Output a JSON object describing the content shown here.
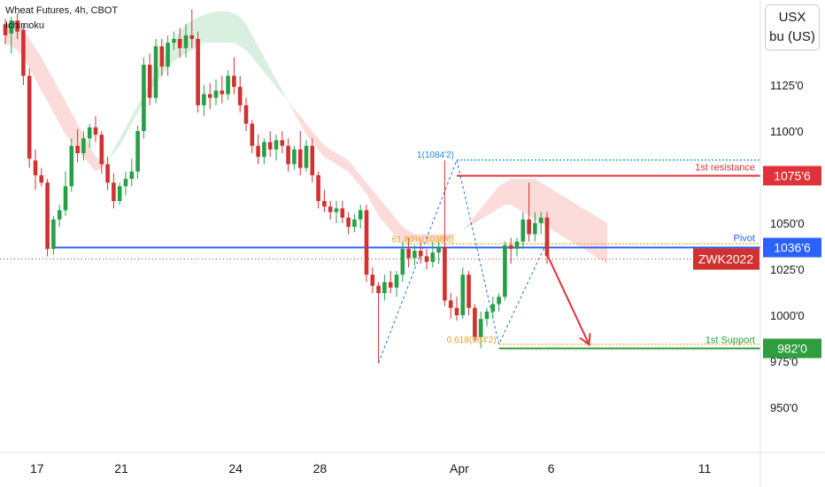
{
  "header": {
    "symbol_line": "Wheat Futures, 4h, CBOT",
    "indicator": "Ichimoku"
  },
  "units": {
    "line1": "USX",
    "line2": "bu (US)"
  },
  "colors": {
    "up": "#26a047",
    "down": "#d1312f",
    "cloud_bull": "#d9efdf",
    "cloud_bear": "#fbdcdb",
    "pivot": "#2962ff",
    "resistance": "#e0323a",
    "support": "#2e9e3e",
    "fib": "#e8a317",
    "fib_top": "#1e88e5"
  },
  "chart_data": {
    "type": "candlestick",
    "symbol": "ZWK2022",
    "timeframe": "4h",
    "x_axis_labels": [
      "17",
      "21",
      "24",
      "28",
      "Apr",
      "6",
      "11"
    ],
    "y_axis_labels": [
      "1125'0",
      "1100'0",
      "1075'0",
      "1050'0",
      "1025'0",
      "1000'0",
      "975'0",
      "950'0"
    ],
    "y_axis_values": [
      1125,
      1100,
      1075,
      1050,
      1025,
      1000,
      975,
      950
    ],
    "ylim": [
      925,
      1168
    ],
    "candles": [
      {
        "o": 1158,
        "h": 1161,
        "l": 1147,
        "c": 1152
      },
      {
        "o": 1153,
        "h": 1162,
        "l": 1142,
        "c": 1160
      },
      {
        "o": 1160,
        "h": 1164,
        "l": 1150,
        "c": 1154
      },
      {
        "o": 1155,
        "h": 1158,
        "l": 1125,
        "c": 1130
      },
      {
        "o": 1130,
        "h": 1134,
        "l": 1080,
        "c": 1085
      },
      {
        "o": 1084,
        "h": 1090,
        "l": 1068,
        "c": 1076
      },
      {
        "o": 1076,
        "h": 1080,
        "l": 1070,
        "c": 1072
      },
      {
        "o": 1072,
        "h": 1074,
        "l": 1032,
        "c": 1036
      },
      {
        "o": 1036,
        "h": 1054,
        "l": 1033,
        "c": 1052
      },
      {
        "o": 1052,
        "h": 1060,
        "l": 1048,
        "c": 1057
      },
      {
        "o": 1057,
        "h": 1078,
        "l": 1054,
        "c": 1070
      },
      {
        "o": 1070,
        "h": 1096,
        "l": 1067,
        "c": 1092
      },
      {
        "o": 1092,
        "h": 1101,
        "l": 1083,
        "c": 1088
      },
      {
        "o": 1088,
        "h": 1100,
        "l": 1084,
        "c": 1096
      },
      {
        "o": 1096,
        "h": 1104,
        "l": 1091,
        "c": 1102
      },
      {
        "o": 1102,
        "h": 1108,
        "l": 1094,
        "c": 1098
      },
      {
        "o": 1098,
        "h": 1100,
        "l": 1077,
        "c": 1082
      },
      {
        "o": 1082,
        "h": 1086,
        "l": 1068,
        "c": 1072
      },
      {
        "o": 1072,
        "h": 1077,
        "l": 1058,
        "c": 1062
      },
      {
        "o": 1062,
        "h": 1072,
        "l": 1060,
        "c": 1070
      },
      {
        "o": 1070,
        "h": 1078,
        "l": 1065,
        "c": 1074
      },
      {
        "o": 1074,
        "h": 1085,
        "l": 1070,
        "c": 1078
      },
      {
        "o": 1078,
        "h": 1103,
        "l": 1074,
        "c": 1100
      },
      {
        "o": 1100,
        "h": 1140,
        "l": 1096,
        "c": 1136
      },
      {
        "o": 1136,
        "h": 1142,
        "l": 1114,
        "c": 1118
      },
      {
        "o": 1118,
        "h": 1150,
        "l": 1115,
        "c": 1146
      },
      {
        "o": 1146,
        "h": 1150,
        "l": 1130,
        "c": 1135
      },
      {
        "o": 1135,
        "h": 1152,
        "l": 1130,
        "c": 1148
      },
      {
        "o": 1148,
        "h": 1154,
        "l": 1144,
        "c": 1150
      },
      {
        "o": 1150,
        "h": 1156,
        "l": 1140,
        "c": 1145
      },
      {
        "o": 1145,
        "h": 1158,
        "l": 1140,
        "c": 1152
      },
      {
        "o": 1152,
        "h": 1166,
        "l": 1145,
        "c": 1150
      },
      {
        "o": 1150,
        "h": 1154,
        "l": 1110,
        "c": 1114
      },
      {
        "o": 1114,
        "h": 1125,
        "l": 1108,
        "c": 1120
      },
      {
        "o": 1120,
        "h": 1126,
        "l": 1112,
        "c": 1118
      },
      {
        "o": 1118,
        "h": 1128,
        "l": 1114,
        "c": 1122
      },
      {
        "o": 1122,
        "h": 1130,
        "l": 1115,
        "c": 1120
      },
      {
        "o": 1120,
        "h": 1133,
        "l": 1117,
        "c": 1130
      },
      {
        "o": 1130,
        "h": 1140,
        "l": 1120,
        "c": 1124
      },
      {
        "o": 1124,
        "h": 1130,
        "l": 1110,
        "c": 1114
      },
      {
        "o": 1114,
        "h": 1118,
        "l": 1100,
        "c": 1104
      },
      {
        "o": 1104,
        "h": 1106,
        "l": 1088,
        "c": 1092
      },
      {
        "o": 1092,
        "h": 1098,
        "l": 1082,
        "c": 1086
      },
      {
        "o": 1086,
        "h": 1096,
        "l": 1082,
        "c": 1094
      },
      {
        "o": 1094,
        "h": 1100,
        "l": 1086,
        "c": 1090
      },
      {
        "o": 1090,
        "h": 1098,
        "l": 1084,
        "c": 1095
      },
      {
        "o": 1095,
        "h": 1100,
        "l": 1088,
        "c": 1092
      },
      {
        "o": 1092,
        "h": 1096,
        "l": 1078,
        "c": 1082
      },
      {
        "o": 1082,
        "h": 1092,
        "l": 1079,
        "c": 1090
      },
      {
        "o": 1090,
        "h": 1100,
        "l": 1076,
        "c": 1080
      },
      {
        "o": 1080,
        "h": 1095,
        "l": 1078,
        "c": 1092
      },
      {
        "o": 1092,
        "h": 1096,
        "l": 1072,
        "c": 1076
      },
      {
        "o": 1076,
        "h": 1078,
        "l": 1058,
        "c": 1062
      },
      {
        "o": 1062,
        "h": 1068,
        "l": 1056,
        "c": 1059
      },
      {
        "o": 1059,
        "h": 1062,
        "l": 1052,
        "c": 1056
      },
      {
        "o": 1056,
        "h": 1062,
        "l": 1050,
        "c": 1058
      },
      {
        "o": 1058,
        "h": 1062,
        "l": 1050,
        "c": 1053
      },
      {
        "o": 1053,
        "h": 1056,
        "l": 1044,
        "c": 1048
      },
      {
        "o": 1048,
        "h": 1055,
        "l": 1045,
        "c": 1052
      },
      {
        "o": 1052,
        "h": 1060,
        "l": 1047,
        "c": 1057
      },
      {
        "o": 1057,
        "h": 1060,
        "l": 1018,
        "c": 1022
      },
      {
        "o": 1022,
        "h": 1026,
        "l": 1012,
        "c": 1016
      },
      {
        "o": 1016,
        "h": 1018,
        "l": 974,
        "c": 1012
      },
      {
        "o": 1012,
        "h": 1022,
        "l": 1008,
        "c": 1018
      },
      {
        "o": 1018,
        "h": 1024,
        "l": 1012,
        "c": 1015
      },
      {
        "o": 1015,
        "h": 1024,
        "l": 1010,
        "c": 1022
      },
      {
        "o": 1022,
        "h": 1040,
        "l": 1018,
        "c": 1036
      },
      {
        "o": 1036,
        "h": 1042,
        "l": 1026,
        "c": 1031
      },
      {
        "o": 1031,
        "h": 1038,
        "l": 1027,
        "c": 1035
      },
      {
        "o": 1035,
        "h": 1040,
        "l": 1028,
        "c": 1032
      },
      {
        "o": 1032,
        "h": 1036,
        "l": 1025,
        "c": 1029
      },
      {
        "o": 1029,
        "h": 1040,
        "l": 1026,
        "c": 1034
      },
      {
        "o": 1034,
        "h": 1040,
        "l": 1028,
        "c": 1037
      },
      {
        "o": 1037,
        "h": 1084,
        "l": 1005,
        "c": 1008
      },
      {
        "o": 1008,
        "h": 1012,
        "l": 998,
        "c": 1004
      },
      {
        "o": 1004,
        "h": 1010,
        "l": 997,
        "c": 1000
      },
      {
        "o": 1000,
        "h": 1026,
        "l": 998,
        "c": 1022
      },
      {
        "o": 1022,
        "h": 1024,
        "l": 1000,
        "c": 1004
      },
      {
        "o": 1004,
        "h": 1006,
        "l": 986,
        "c": 988
      },
      {
        "o": 988,
        "h": 1002,
        "l": 982,
        "c": 998
      },
      {
        "o": 998,
        "h": 1004,
        "l": 994,
        "c": 1002
      },
      {
        "o": 1002,
        "h": 1010,
        "l": 998,
        "c": 1006
      },
      {
        "o": 1006,
        "h": 1012,
        "l": 1002,
        "c": 1010
      },
      {
        "o": 1010,
        "h": 1040,
        "l": 1008,
        "c": 1038
      },
      {
        "o": 1038,
        "h": 1042,
        "l": 1028,
        "c": 1036
      },
      {
        "o": 1036,
        "h": 1042,
        "l": 1032,
        "c": 1040
      },
      {
        "o": 1040,
        "h": 1056,
        "l": 1036,
        "c": 1052
      },
      {
        "o": 1052,
        "h": 1072,
        "l": 1040,
        "c": 1044
      },
      {
        "o": 1044,
        "h": 1056,
        "l": 1040,
        "c": 1050
      },
      {
        "o": 1050,
        "h": 1056,
        "l": 1044,
        "c": 1053
      },
      {
        "o": 1053,
        "h": 1056,
        "l": 1028,
        "c": 1032
      }
    ],
    "ichimoku_cloud": {
      "span_a": [
        1148,
        1146,
        1144,
        1140,
        1134,
        1128,
        1122,
        1116,
        1110,
        1104,
        1098,
        1094,
        1090,
        1086,
        1082,
        1078,
        1080,
        1084,
        1090,
        1096,
        1102,
        1108,
        1114,
        1120,
        1126,
        1132,
        1138,
        1144,
        1150,
        1154,
        1158,
        1160,
        1162,
        1163,
        1164,
        1165,
        1165,
        1165,
        1164,
        1162,
        1158,
        1152,
        1146,
        1140,
        1134,
        1128,
        1122,
        1116,
        1110,
        1104,
        1098,
        1094,
        1090,
        1086,
        1084,
        1082,
        1080,
        1078,
        1074,
        1070,
        1066,
        1060,
        1054,
        1050,
        1046,
        1042,
        1040,
        1040,
        1040,
        1040,
        1040,
        1040,
        1040,
        1040,
        1042,
        1044,
        1046,
        1048,
        1050,
        1052,
        1054,
        1056,
        1058,
        1060,
        1060,
        1058,
        1056,
        1054,
        1052,
        1050,
        1048,
        1046,
        1044,
        1042,
        1040,
        1038,
        1036,
        1034,
        1032,
        1030,
        1028
      ],
      "span_b": [
        1158,
        1158,
        1158,
        1155,
        1150,
        1145,
        1140,
        1134,
        1128,
        1122,
        1116,
        1110,
        1104,
        1098,
        1092,
        1086,
        1084,
        1084,
        1088,
        1092,
        1098,
        1104,
        1110,
        1116,
        1122,
        1126,
        1130,
        1134,
        1138,
        1140,
        1142,
        1144,
        1146,
        1148,
        1148,
        1148,
        1148,
        1148,
        1148,
        1146,
        1144,
        1140,
        1136,
        1132,
        1128,
        1124,
        1120,
        1116,
        1112,
        1108,
        1104,
        1100,
        1096,
        1092,
        1090,
        1088,
        1086,
        1084,
        1080,
        1076,
        1072,
        1068,
        1064,
        1060,
        1056,
        1052,
        1048,
        1046,
        1044,
        1044,
        1044,
        1044,
        1044,
        1044,
        1044,
        1044,
        1046,
        1050,
        1054,
        1058,
        1062,
        1066,
        1070,
        1072,
        1074,
        1074,
        1074,
        1074,
        1074,
        1072,
        1070,
        1068,
        1066,
        1064,
        1062,
        1060,
        1058,
        1056,
        1054,
        1052,
        1050
      ]
    },
    "levels": [
      {
        "name": "1st resistance",
        "label": "1075'6",
        "value": 1075.75
      },
      {
        "name": "Pivot",
        "label": "1036'6",
        "value": 1036.75
      },
      {
        "name": "1st Support",
        "label": "982'0",
        "value": 982.0
      }
    ],
    "current_price": {
      "label": "ZWK2022",
      "value": 1030.5
    },
    "fibonacci": [
      {
        "label": "1(1084'2)",
        "value": 1084.25
      },
      {
        "label": "61.80%(1038'6)",
        "value": 1038.75
      },
      {
        "label": "0.618(984'2)",
        "value": 984.25
      }
    ],
    "projection_arrow": {
      "from_index": 90,
      "from_value": 1033,
      "to_index": 97,
      "to_value": 984
    }
  }
}
